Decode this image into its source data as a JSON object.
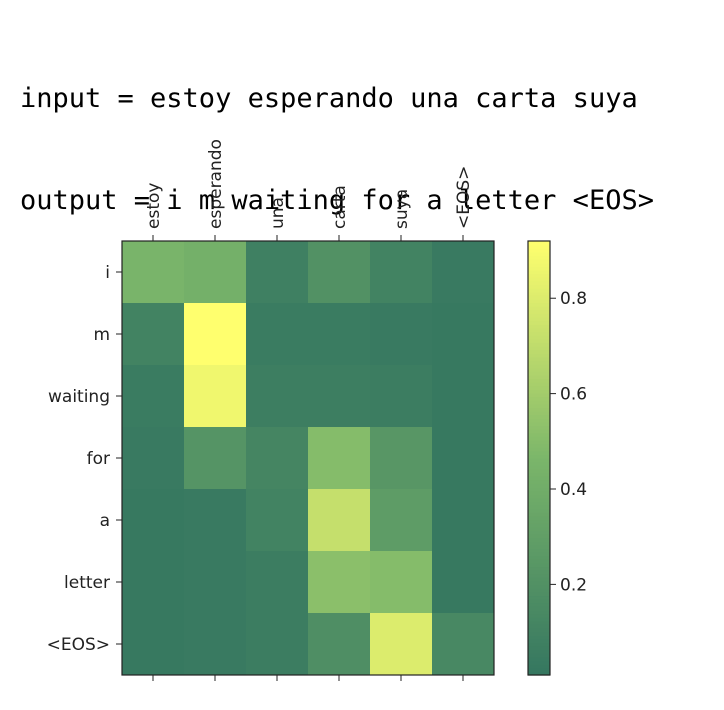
{
  "header": {
    "input_line": "input = estoy esperando una carta suya",
    "output_line": "output = i m waiting for a letter <EOS>"
  },
  "chart_data": {
    "type": "heatmap",
    "x_categories": [
      "estoy",
      "esperando",
      "una",
      "carta",
      "suya",
      "<EOS>"
    ],
    "y_categories": [
      "i",
      "m",
      "waiting",
      "for",
      "a",
      "letter",
      "<EOS>"
    ],
    "values": [
      [
        0.45,
        0.42,
        0.08,
        0.2,
        0.1,
        0.04
      ],
      [
        0.1,
        0.92,
        0.05,
        0.05,
        0.04,
        0.03
      ],
      [
        0.05,
        0.87,
        0.07,
        0.07,
        0.06,
        0.03
      ],
      [
        0.04,
        0.22,
        0.12,
        0.5,
        0.24,
        0.03
      ],
      [
        0.03,
        0.04,
        0.1,
        0.72,
        0.28,
        0.03
      ],
      [
        0.03,
        0.04,
        0.06,
        0.52,
        0.5,
        0.03
      ],
      [
        0.03,
        0.04,
        0.06,
        0.18,
        0.8,
        0.14
      ]
    ],
    "colorbar": {
      "ticks": [
        0.2,
        0.4,
        0.6,
        0.8
      ],
      "tick_labels": [
        "0.2",
        "0.4",
        "0.6",
        "0.8"
      ],
      "range": [
        0.01,
        0.92
      ]
    },
    "colormap": {
      "low": "#347660",
      "mid": "#7bb66a",
      "high": "#ffff6e"
    }
  }
}
